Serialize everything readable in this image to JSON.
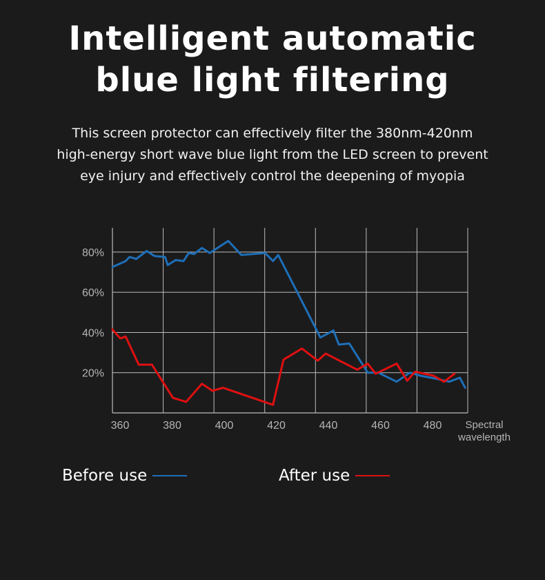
{
  "header": {
    "title_line1": "Intelligent automatic",
    "title_line2": "blue light filtering",
    "desc_line1": "This screen protector can effectively filter the 380nm-420nm",
    "desc_line2": "high-energy short wave blue light from the LED screen to prevent",
    "desc_line3": "eye injury and effectively control the deepening of myopia"
  },
  "colors": {
    "before": "#1e6fb8",
    "after": "#e01010",
    "grid": "#bdbdbd",
    "tick_text": "#b5b5b5"
  },
  "chart_data": {
    "type": "line",
    "title": "",
    "xlabel": "Spectral wavelength",
    "xlabel_lines": [
      "Spectral",
      "wavelength"
    ],
    "ylabel": "",
    "xlim": [
      357,
      492
    ],
    "ylim": [
      0,
      92
    ],
    "x_ticks": [
      360,
      380,
      400,
      420,
      440,
      460,
      480
    ],
    "y_ticks": [
      20,
      40,
      60,
      80
    ],
    "y_tick_labels": [
      "20%",
      "40%",
      "60%",
      "80%"
    ],
    "grid": true,
    "legend_position": "bottom",
    "series": [
      {
        "name": "Before use",
        "color": "#1e6fb8",
        "points": [
          [
            357,
            72.5
          ],
          [
            362,
            75.5
          ],
          [
            363.5,
            77.5
          ],
          [
            365,
            77
          ],
          [
            366,
            76.5
          ],
          [
            370,
            80.5
          ],
          [
            373,
            78
          ],
          [
            377,
            77.5
          ],
          [
            378,
            73.5
          ],
          [
            381,
            76
          ],
          [
            384,
            75.5
          ],
          [
            386,
            79.5
          ],
          [
            388,
            79
          ],
          [
            391,
            82
          ],
          [
            394,
            79.5
          ],
          [
            401,
            85.5
          ],
          [
            406,
            78.5
          ],
          [
            415,
            79.5
          ],
          [
            418,
            75.5
          ],
          [
            420,
            78.5
          ],
          [
            436,
            37.5
          ],
          [
            441,
            41
          ],
          [
            443,
            34
          ],
          [
            447,
            34.5
          ],
          [
            454,
            20
          ],
          [
            458,
            20
          ],
          [
            465,
            15.5
          ],
          [
            470,
            20
          ],
          [
            474,
            18.5
          ],
          [
            480,
            17
          ],
          [
            485,
            15.5
          ],
          [
            489,
            17.5
          ],
          [
            491,
            12.5
          ]
        ]
      },
      {
        "name": "After use",
        "color": "#e01010",
        "points": [
          [
            357,
            41.5
          ],
          [
            360,
            37
          ],
          [
            362,
            38
          ],
          [
            367,
            24
          ],
          [
            372,
            24
          ],
          [
            380,
            7.5
          ],
          [
            385,
            5.5
          ],
          [
            391,
            14.5
          ],
          [
            395,
            11
          ],
          [
            399,
            12.5
          ],
          [
            418,
            4
          ],
          [
            422,
            26.5
          ],
          [
            429,
            32
          ],
          [
            435,
            26
          ],
          [
            438,
            29.5
          ],
          [
            450,
            21.5
          ],
          [
            454,
            24.5
          ],
          [
            457,
            19.5
          ],
          [
            465,
            24.5
          ],
          [
            469,
            16
          ],
          [
            472,
            20.5
          ],
          [
            479,
            18.5
          ],
          [
            483,
            15.5
          ],
          [
            487,
            19.5
          ]
        ]
      }
    ]
  }
}
